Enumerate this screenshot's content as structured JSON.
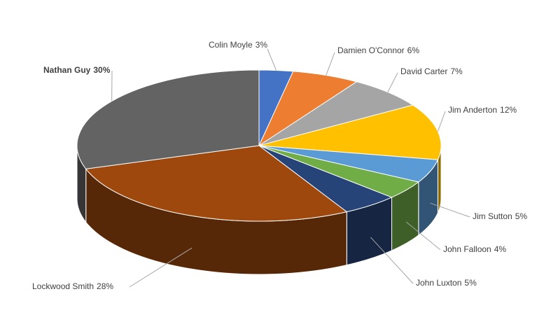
{
  "chart_data": {
    "type": "pie3d",
    "categories": [
      "Colin Moyle",
      "Damien O'Connor",
      "David Carter",
      "Jim Anderton",
      "Jim Sutton",
      "John Falloon",
      "John Luxton",
      "Lockwood Smith",
      "Nathan Guy"
    ],
    "values": [
      3,
      6,
      7,
      12,
      5,
      4,
      5,
      28,
      30
    ],
    "value_labels": [
      "3%",
      "6%",
      "7%",
      "12%",
      "5%",
      "4%",
      "5%",
      "28%",
      "30%"
    ],
    "colors": [
      "#4472c4",
      "#ed7d31",
      "#a5a5a5",
      "#ffc000",
      "#5b9bd5",
      "#70ad47",
      "#264478",
      "#9e480e",
      "#636363"
    ]
  }
}
